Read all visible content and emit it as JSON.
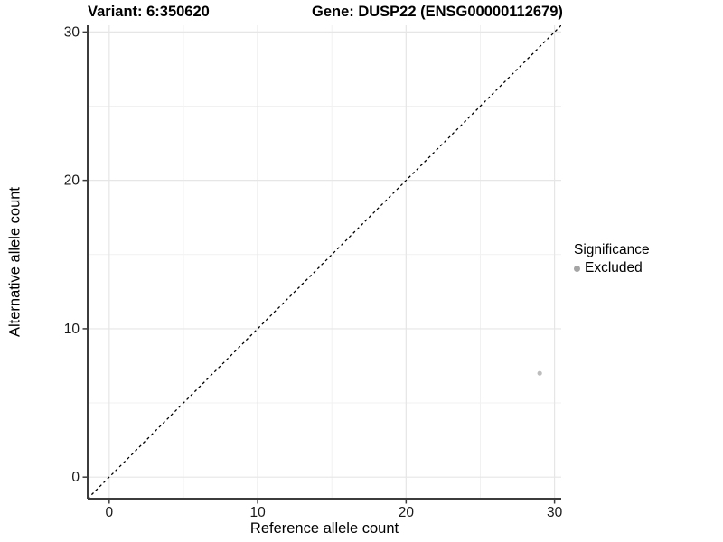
{
  "chart_data": {
    "type": "scatter",
    "title_left": "Variant: 6:350620",
    "title_right": "Gene: DUSP22 (ENSG00000112679)",
    "xlabel": "Reference allele count",
    "ylabel": "Alternative allele count",
    "xlim": [
      -1.45,
      30.45
    ],
    "ylim": [
      -1.45,
      30.45
    ],
    "x_ticks": [
      0,
      10,
      20,
      30
    ],
    "y_ticks": [
      0,
      10,
      20,
      30
    ],
    "x_minor_ticks": [
      5,
      15,
      25
    ],
    "y_minor_ticks": [
      5,
      15,
      25
    ],
    "grid": true,
    "reference_line": {
      "type": "identity",
      "slope": 1,
      "intercept": 0,
      "style": "dashed",
      "color": "#000000"
    },
    "series": [
      {
        "name": "Excluded",
        "color": "#bdbdbd",
        "points": [
          {
            "x": 29,
            "y": 7
          }
        ]
      }
    ],
    "legend": {
      "title": "Significance",
      "position": "right",
      "items": [
        {
          "label": "Excluded",
          "color": "#a5a5a5"
        }
      ]
    }
  },
  "colors": {
    "background": "#ffffff",
    "axis_line": "#3c3c3c",
    "tick_label": "#1a1a1a",
    "major_grid": "#e6e6e6",
    "minor_grid": "#f1f1f1",
    "excluded_point": "#bdbdbd"
  }
}
